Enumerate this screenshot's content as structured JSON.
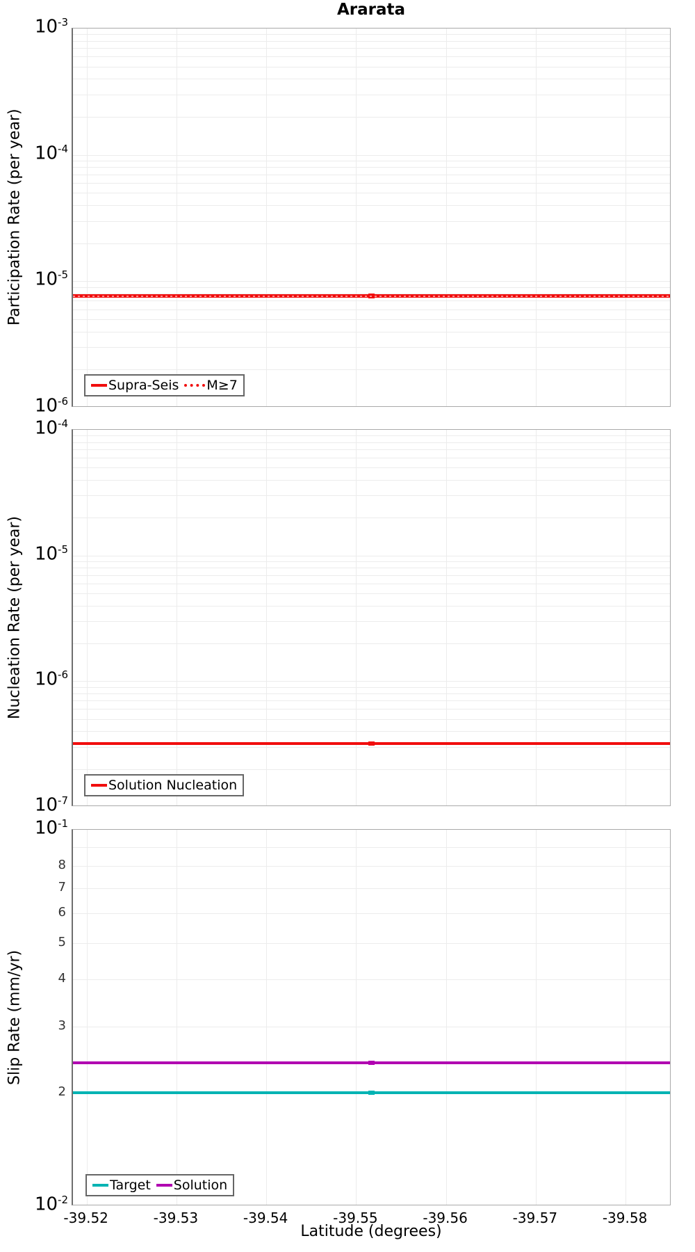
{
  "title": "Ararata",
  "xlabel": "Latitude (degrees)",
  "chart_data": [
    {
      "type": "line",
      "panel": "participation-rate",
      "ylabel": "Participation Rate (per year)",
      "yscale": "log",
      "ylim": [
        1e-06,
        0.001
      ],
      "y_tick_exponents": [
        -3,
        -4,
        -5,
        -6
      ],
      "xlim": [
        -39.5184,
        -39.5851
      ],
      "grid": true,
      "legend_position": "lower-left",
      "series": [
        {
          "name": "Supra-Seis",
          "style": "solid",
          "color": "#f10e0e",
          "width": 5,
          "value": 7.6e-06
        },
        {
          "name": "M≥7",
          "style": "dotted",
          "color": "#f10e0e",
          "width": 5,
          "value": 7.6e-06
        }
      ]
    },
    {
      "type": "line",
      "panel": "nucleation-rate",
      "ylabel": "Nucleation Rate (per year)",
      "yscale": "log",
      "ylim": [
        1e-07,
        0.0001
      ],
      "y_tick_exponents": [
        -4,
        -5,
        -6,
        -7
      ],
      "xlim": [
        -39.5184,
        -39.5851
      ],
      "grid": true,
      "legend_position": "lower-left",
      "series": [
        {
          "name": "Solution Nucleation",
          "style": "solid",
          "color": "#f10e0e",
          "width": 4,
          "value": 3.2e-07
        }
      ]
    },
    {
      "type": "line",
      "panel": "slip-rate",
      "ylabel": "Slip Rate (mm/yr)",
      "yscale": "log",
      "ylim": [
        0.01,
        0.1
      ],
      "y_tick_exponents": [
        -1,
        -2
      ],
      "y_minor_tick_labels": [
        "8",
        "7",
        "6",
        "5",
        "4",
        "3",
        "2"
      ],
      "y_minor_tick_values": [
        0.08,
        0.07,
        0.06,
        0.05,
        0.04,
        0.03,
        0.02
      ],
      "xlim": [
        -39.5184,
        -39.5851
      ],
      "grid": true,
      "legend_position": "lower-left",
      "series": [
        {
          "name": "Target",
          "style": "solid",
          "color": "#00b3b3",
          "width": 4,
          "value": 0.02
        },
        {
          "name": "Solution",
          "style": "solid",
          "color": "#b100b1",
          "width": 4,
          "value": 0.024
        }
      ]
    }
  ],
  "x_tick_labels": [
    "-39.52",
    "-39.53",
    "-39.54",
    "-39.55",
    "-39.56",
    "-39.57",
    "-39.58"
  ],
  "x_tick_values": [
    -39.52,
    -39.53,
    -39.54,
    -39.55,
    -39.56,
    -39.57,
    -39.58
  ],
  "marker_x": -39.5516,
  "colors": {
    "red": "#f10e0e",
    "teal": "#00b3b3",
    "purple": "#b100b1",
    "grid": "#ececec",
    "frame": "#a9a9a9",
    "spine": "#6e6e6e"
  }
}
